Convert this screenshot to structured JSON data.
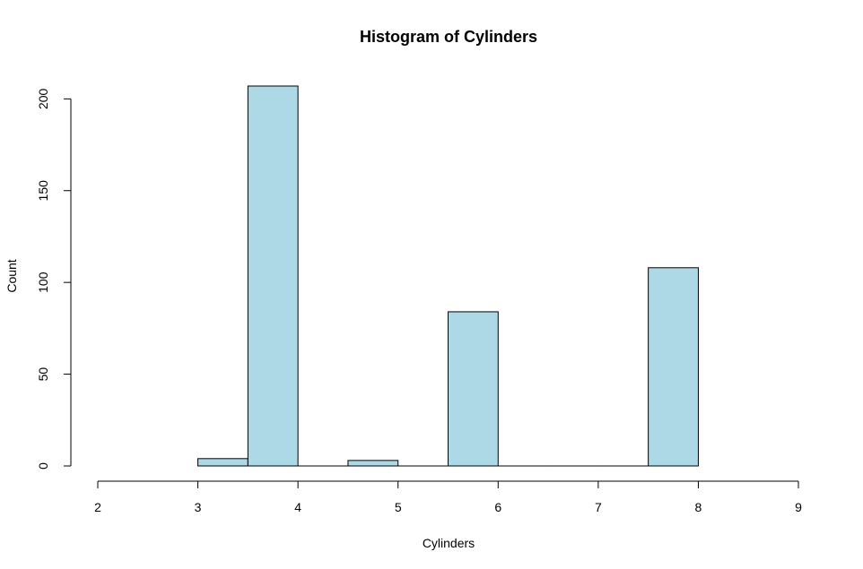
{
  "chart_data": {
    "type": "bar",
    "title": "Histogram of Cylinders",
    "xlabel": "Cylinders",
    "ylabel": "Count",
    "xlim": [
      2,
      9
    ],
    "ylim": [
      0,
      207
    ],
    "x_ticks": [
      2,
      3,
      4,
      5,
      6,
      7,
      8,
      9
    ],
    "y_ticks": [
      0,
      50,
      100,
      150,
      200
    ],
    "bins": [
      {
        "start": 3.0,
        "end": 3.5,
        "count": 4
      },
      {
        "start": 3.5,
        "end": 4.0,
        "count": 207
      },
      {
        "start": 4.0,
        "end": 4.5,
        "count": 0
      },
      {
        "start": 4.5,
        "end": 5.0,
        "count": 3
      },
      {
        "start": 5.0,
        "end": 5.5,
        "count": 0
      },
      {
        "start": 5.5,
        "end": 6.0,
        "count": 84
      },
      {
        "start": 6.0,
        "end": 6.5,
        "count": 0
      },
      {
        "start": 6.5,
        "end": 7.0,
        "count": 0
      },
      {
        "start": 7.0,
        "end": 7.5,
        "count": 0
      },
      {
        "start": 7.5,
        "end": 8.0,
        "count": 108
      }
    ],
    "bar_color": "#add8e6",
    "grid": false
  }
}
